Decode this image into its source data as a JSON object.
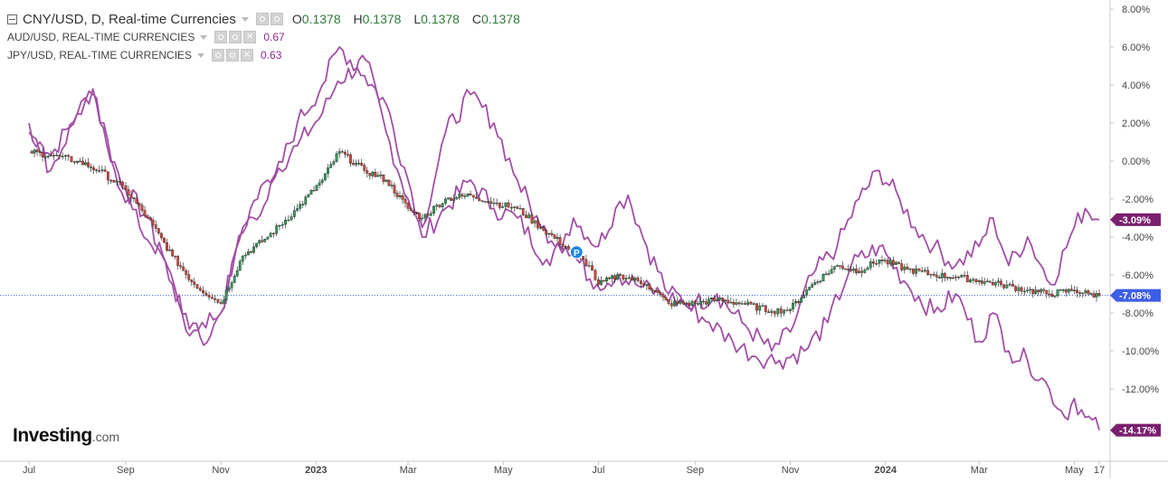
{
  "legend": {
    "main": {
      "symbol": "CNY/USD, D, Real-time Currencies",
      "open_label": "O",
      "open_value": "0.1378",
      "high_label": "H",
      "high_value": "0.1378",
      "low_label": "L",
      "low_value": "0.1378",
      "close_label": "C",
      "close_value": "0.1378"
    },
    "comparisons": [
      {
        "symbol": "AUD/USD, REAL-TIME CURRENCIES",
        "value": "0.67"
      },
      {
        "symbol": "JPY/USD, REAL-TIME CURRENCIES",
        "value": "0.63"
      }
    ]
  },
  "logo": {
    "brand": "Investing",
    "suffix": ".com"
  },
  "colors": {
    "up": "#2f9e5a",
    "down": "#d9453b",
    "compare": "#a24fa6",
    "axis_badge_main": "#3d5ee6",
    "axis_badge_compare": "#7a1f6e"
  },
  "chart_data": {
    "type": "line",
    "title": "CNY/USD, D, Real-time Currencies",
    "x_range": [
      "2022-07-01",
      "2024-05-17"
    ],
    "x_ticks": [
      {
        "date": "2022-07-01",
        "label": "Jul"
      },
      {
        "date": "2022-09-01",
        "label": "Sep"
      },
      {
        "date": "2022-11-01",
        "label": "Nov"
      },
      {
        "date": "2023-01-01",
        "label": "2023"
      },
      {
        "date": "2023-03-01",
        "label": "Mar"
      },
      {
        "date": "2023-05-01",
        "label": "May"
      },
      {
        "date": "2023-07-01",
        "label": "Jul"
      },
      {
        "date": "2023-09-01",
        "label": "Sep"
      },
      {
        "date": "2023-11-01",
        "label": "Nov"
      },
      {
        "date": "2024-01-01",
        "label": "2024"
      },
      {
        "date": "2024-03-01",
        "label": "Mar"
      },
      {
        "date": "2024-05-01",
        "label": "May"
      },
      {
        "date": "2024-05-17",
        "label": "17"
      }
    ],
    "y_range": [
      -16.3,
      8.3
    ],
    "y_unit": "%",
    "y_ticks": [
      8,
      6,
      4,
      2,
      0,
      -2,
      -4,
      -6,
      -8,
      -10,
      -12
    ],
    "y_tick_labels": [
      "8.00%",
      "6.00%",
      "4.00%",
      "2.00%",
      "0.00%",
      "-2.00%",
      "-4.00%",
      "-6.00%",
      "-8.00%",
      "-10.00%",
      "-12.00%"
    ],
    "grid": false,
    "reference_line": -7.08,
    "last_value_labels": [
      {
        "value": "-3.09%",
        "y": -3.09,
        "series": "AUD/USD"
      },
      {
        "value": "-7.08%",
        "y": -7.08,
        "series": "CNY/USD"
      },
      {
        "value": "-14.17%",
        "y": -14.17,
        "series": "JPY/USD"
      }
    ],
    "event_marker": {
      "label": "P",
      "date": "2023-06-17",
      "y": -4.8
    },
    "series": [
      {
        "name": "AUD/USD",
        "style": "line",
        "points": [
          [
            "2022-07-01",
            1.5
          ],
          [
            "2022-07-15",
            0.3
          ],
          [
            "2022-08-01",
            2.5
          ],
          [
            "2022-08-11",
            3.8
          ],
          [
            "2022-08-20",
            0.8
          ],
          [
            "2022-09-01",
            -1.5
          ],
          [
            "2022-09-15",
            -3.0
          ],
          [
            "2022-10-01",
            -6.5
          ],
          [
            "2022-10-12",
            -9.2
          ],
          [
            "2022-10-20",
            -8.5
          ],
          [
            "2022-11-01",
            -8.0
          ],
          [
            "2022-11-10",
            -5.0
          ],
          [
            "2022-11-20",
            -2.5
          ],
          [
            "2022-12-01",
            -1.0
          ],
          [
            "2022-12-20",
            0.8
          ],
          [
            "2023-01-05",
            2.5
          ],
          [
            "2023-01-15",
            4.2
          ],
          [
            "2023-02-02",
            5.3
          ],
          [
            "2023-02-15",
            1.5
          ],
          [
            "2023-03-01",
            -2.0
          ],
          [
            "2023-03-10",
            -4.0
          ],
          [
            "2023-03-25",
            -2.5
          ],
          [
            "2023-04-10",
            -1.0
          ],
          [
            "2023-04-25",
            -2.5
          ],
          [
            "2023-05-10",
            -3.0
          ],
          [
            "2023-05-31",
            -5.5
          ],
          [
            "2023-06-15",
            -3.0
          ],
          [
            "2023-07-01",
            -4.5
          ],
          [
            "2023-07-12",
            -2.5
          ],
          [
            "2023-07-20",
            -1.8
          ],
          [
            "2023-08-01",
            -4.5
          ],
          [
            "2023-08-15",
            -7.0
          ],
          [
            "2023-09-01",
            -7.5
          ],
          [
            "2023-09-15",
            -7.0
          ],
          [
            "2023-10-01",
            -8.5
          ],
          [
            "2023-10-20",
            -10.0
          ],
          [
            "2023-11-01",
            -9.0
          ],
          [
            "2023-11-15",
            -6.0
          ],
          [
            "2023-12-01",
            -4.5
          ],
          [
            "2023-12-15",
            -2.0
          ],
          [
            "2023-12-28",
            -0.5
          ],
          [
            "2024-01-10",
            -2.0
          ],
          [
            "2024-01-20",
            -3.5
          ],
          [
            "2024-02-01",
            -4.5
          ],
          [
            "2024-02-15",
            -5.5
          ],
          [
            "2024-03-01",
            -4.5
          ],
          [
            "2024-03-10",
            -3.0
          ],
          [
            "2024-03-20",
            -5.5
          ],
          [
            "2024-04-01",
            -4.0
          ],
          [
            "2024-04-16",
            -6.5
          ],
          [
            "2024-05-01",
            -3.5
          ],
          [
            "2024-05-08",
            -2.5
          ],
          [
            "2024-05-17",
            -3.09
          ]
        ]
      },
      {
        "name": "JPY/USD",
        "style": "line",
        "points": [
          [
            "2022-07-01",
            2.0
          ],
          [
            "2022-07-15",
            -0.5
          ],
          [
            "2022-08-01",
            2.5
          ],
          [
            "2022-08-11",
            3.5
          ],
          [
            "2022-08-25",
            -0.5
          ],
          [
            "2022-09-10",
            -3.5
          ],
          [
            "2022-09-25",
            -5.0
          ],
          [
            "2022-10-05",
            -7.5
          ],
          [
            "2022-10-21",
            -9.7
          ],
          [
            "2022-11-01",
            -8.0
          ],
          [
            "2022-11-15",
            -3.5
          ],
          [
            "2022-12-01",
            -2.0
          ],
          [
            "2022-12-20",
            2.0
          ],
          [
            "2023-01-05",
            4.0
          ],
          [
            "2023-01-16",
            6.0
          ],
          [
            "2023-02-01",
            4.5
          ],
          [
            "2023-02-15",
            3.0
          ],
          [
            "2023-03-01",
            -1.0
          ],
          [
            "2023-03-10",
            -3.5
          ],
          [
            "2023-03-25",
            1.5
          ],
          [
            "2023-04-10",
            3.5
          ],
          [
            "2023-04-25",
            2.0
          ],
          [
            "2023-05-10",
            -1.0
          ],
          [
            "2023-05-25",
            -3.5
          ],
          [
            "2023-06-10",
            -4.5
          ],
          [
            "2023-06-30",
            -6.5
          ],
          [
            "2023-07-14",
            -6.0
          ],
          [
            "2023-07-25",
            -6.5
          ],
          [
            "2023-08-10",
            -7.0
          ],
          [
            "2023-08-25",
            -7.5
          ],
          [
            "2023-09-10",
            -8.5
          ],
          [
            "2023-09-25",
            -9.5
          ],
          [
            "2023-10-10",
            -10.3
          ],
          [
            "2023-10-25",
            -10.5
          ],
          [
            "2023-11-10",
            -10.0
          ],
          [
            "2023-11-25",
            -8.5
          ],
          [
            "2023-12-10",
            -5.5
          ],
          [
            "2023-12-28",
            -4.5
          ],
          [
            "2024-01-15",
            -6.5
          ],
          [
            "2024-02-01",
            -8.0
          ],
          [
            "2024-02-15",
            -7.0
          ],
          [
            "2024-03-01",
            -9.5
          ],
          [
            "2024-03-10",
            -8.0
          ],
          [
            "2024-03-20",
            -10.0
          ],
          [
            "2024-04-01",
            -10.5
          ],
          [
            "2024-04-15",
            -12.0
          ],
          [
            "2024-04-25",
            -13.5
          ],
          [
            "2024-05-01",
            -12.5
          ],
          [
            "2024-05-08",
            -13.5
          ],
          [
            "2024-05-17",
            -14.17
          ]
        ]
      },
      {
        "name": "CNY/USD",
        "style": "candlestick",
        "points": [
          [
            "2022-07-01",
            0.5
          ],
          [
            "2022-07-15",
            0.3
          ],
          [
            "2022-08-01",
            0.0
          ],
          [
            "2022-08-15",
            -0.5
          ],
          [
            "2022-09-01",
            -1.5
          ],
          [
            "2022-09-15",
            -3.0
          ],
          [
            "2022-10-01",
            -5.0
          ],
          [
            "2022-10-15",
            -6.5
          ],
          [
            "2022-11-01",
            -7.5
          ],
          [
            "2022-11-15",
            -5.0
          ],
          [
            "2022-12-01",
            -4.0
          ],
          [
            "2022-12-20",
            -2.5
          ],
          [
            "2023-01-05",
            -1.0
          ],
          [
            "2023-01-16",
            0.5
          ],
          [
            "2023-02-01",
            -0.5
          ],
          [
            "2023-02-15",
            -1.0
          ],
          [
            "2023-03-01",
            -2.5
          ],
          [
            "2023-03-10",
            -3.0
          ],
          [
            "2023-03-25",
            -2.0
          ],
          [
            "2023-04-10",
            -1.8
          ],
          [
            "2023-04-25",
            -2.2
          ],
          [
            "2023-05-10",
            -2.5
          ],
          [
            "2023-05-25",
            -3.5
          ],
          [
            "2023-06-10",
            -4.5
          ],
          [
            "2023-06-25",
            -5.5
          ],
          [
            "2023-07-01",
            -6.5
          ],
          [
            "2023-07-15",
            -6.0
          ],
          [
            "2023-08-01",
            -6.5
          ],
          [
            "2023-08-15",
            -7.5
          ],
          [
            "2023-09-01",
            -7.5
          ],
          [
            "2023-09-15",
            -7.3
          ],
          [
            "2023-10-01",
            -7.5
          ],
          [
            "2023-10-20",
            -7.9
          ],
          [
            "2023-11-01",
            -7.8
          ],
          [
            "2023-11-15",
            -6.5
          ],
          [
            "2023-12-01",
            -5.5
          ],
          [
            "2023-12-15",
            -5.8
          ],
          [
            "2023-12-28",
            -5.2
          ],
          [
            "2024-01-15",
            -5.7
          ],
          [
            "2024-02-01",
            -6.0
          ],
          [
            "2024-02-15",
            -6.1
          ],
          [
            "2024-03-01",
            -6.3
          ],
          [
            "2024-03-15",
            -6.5
          ],
          [
            "2024-04-01",
            -6.8
          ],
          [
            "2024-04-15",
            -7.0
          ],
          [
            "2024-05-01",
            -6.8
          ],
          [
            "2024-05-10",
            -7.0
          ],
          [
            "2024-05-17",
            -7.08
          ]
        ]
      }
    ]
  }
}
